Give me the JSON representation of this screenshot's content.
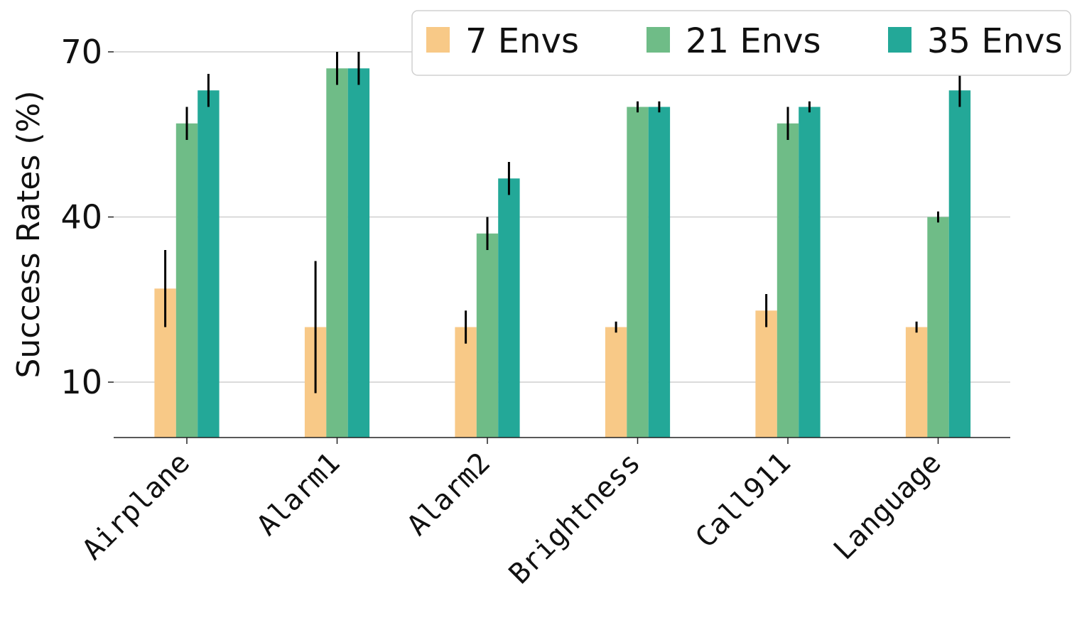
{
  "chart_data": {
    "type": "bar",
    "title": "",
    "xlabel": "",
    "ylabel": "Success Rates (%)",
    "categories": [
      "Airplane",
      "Alarm1",
      "Alarm2",
      "Brightness",
      "Call911",
      "Language"
    ],
    "yticks": [
      10,
      40,
      70
    ],
    "ytick_labels": [
      "10",
      "40",
      "70"
    ],
    "ylim": [
      0,
      70
    ],
    "grid": "horizontal",
    "legend_position": "top-right",
    "series": [
      {
        "name": "7 Envs",
        "color": "#F8C987",
        "values": [
          27,
          20,
          20,
          20,
          23,
          20
        ],
        "errors": [
          7,
          12,
          3,
          1,
          3,
          1
        ]
      },
      {
        "name": "21 Envs",
        "color": "#6FBC87",
        "values": [
          57,
          67,
          37,
          60,
          57,
          40
        ],
        "errors": [
          3,
          3,
          3,
          1,
          3,
          1
        ]
      },
      {
        "name": "35 Envs",
        "color": "#23A898",
        "values": [
          63,
          67,
          47,
          60,
          60,
          63
        ],
        "errors": [
          3,
          3,
          3,
          1,
          1,
          3
        ]
      }
    ]
  }
}
